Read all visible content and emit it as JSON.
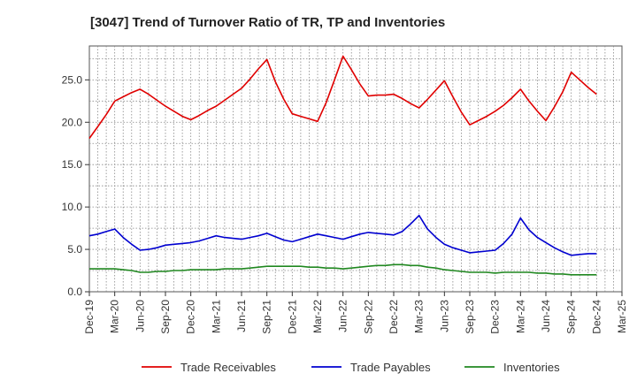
{
  "chart_data": {
    "type": "line",
    "title": "[3047]  Trend of Turnover Ratio of TR, TP and Inventories",
    "xlabel": "",
    "ylabel": "",
    "ylim": [
      0,
      29
    ],
    "yticks": [
      "0.0",
      "5.0",
      "10.0",
      "15.0",
      "20.0",
      "25.0"
    ],
    "ytick_values": [
      0,
      5,
      10,
      15,
      20,
      25
    ],
    "xticks": [
      "Dec-19",
      "Mar-20",
      "Jun-20",
      "Sep-20",
      "Dec-20",
      "Mar-21",
      "Jun-21",
      "Sep-21",
      "Dec-21",
      "Mar-22",
      "Jun-22",
      "Sep-22",
      "Dec-22",
      "Mar-23",
      "Jun-23",
      "Sep-23",
      "Dec-23",
      "Mar-24",
      "Jun-24",
      "Sep-24",
      "Dec-24",
      "Mar-25"
    ],
    "x": [
      "Dec-19",
      "Jan-20",
      "Feb-20",
      "Mar-20",
      "Apr-20",
      "May-20",
      "Jun-20",
      "Jul-20",
      "Aug-20",
      "Sep-20",
      "Oct-20",
      "Nov-20",
      "Dec-20",
      "Jan-21",
      "Feb-21",
      "Mar-21",
      "Apr-21",
      "May-21",
      "Jun-21",
      "Jul-21",
      "Aug-21",
      "Sep-21",
      "Oct-21",
      "Nov-21",
      "Dec-21",
      "Jan-22",
      "Feb-22",
      "Mar-22",
      "Apr-22",
      "May-22",
      "Jun-22",
      "Jul-22",
      "Aug-22",
      "Sep-22",
      "Oct-22",
      "Nov-22",
      "Dec-22",
      "Jan-23",
      "Feb-23",
      "Mar-23",
      "Apr-23",
      "May-23",
      "Jun-23",
      "Jul-23",
      "Aug-23",
      "Sep-23",
      "Oct-23",
      "Nov-23",
      "Dec-23",
      "Jan-24",
      "Feb-24",
      "Mar-24",
      "Apr-24",
      "May-24",
      "Jun-24",
      "Jul-24",
      "Aug-24",
      "Sep-24",
      "Oct-24",
      "Nov-24",
      "Dec-24"
    ],
    "grid": true,
    "legend_position": "bottom",
    "series": [
      {
        "name": "Trade Receivables",
        "color": "#e00000",
        "values": [
          18.1,
          19.5,
          20.9,
          22.5,
          23.0,
          23.5,
          23.9,
          23.3,
          22.6,
          21.9,
          21.3,
          20.7,
          20.3,
          20.8,
          21.4,
          21.9,
          22.6,
          23.3,
          24.0,
          25.1,
          26.3,
          27.4,
          24.8,
          22.7,
          21.0,
          20.7,
          20.4,
          20.1,
          22.3,
          25.0,
          27.8,
          26.2,
          24.5,
          23.1,
          23.2,
          23.2,
          23.3,
          22.8,
          22.2,
          21.7,
          22.7,
          23.8,
          24.9,
          23.0,
          21.2,
          19.7,
          20.2,
          20.7,
          21.3,
          22.0,
          22.9,
          23.9,
          22.5,
          21.3,
          20.2,
          21.8,
          23.6,
          25.9,
          25.0,
          24.1,
          23.3
        ]
      },
      {
        "name": "Trade Payables",
        "color": "#0000d0",
        "values": [
          6.6,
          6.8,
          7.1,
          7.4,
          6.4,
          5.6,
          4.9,
          5.0,
          5.2,
          5.5,
          5.6,
          5.7,
          5.8,
          6.0,
          6.3,
          6.6,
          6.4,
          6.3,
          6.2,
          6.4,
          6.6,
          6.9,
          6.5,
          6.1,
          5.9,
          6.2,
          6.5,
          6.8,
          6.6,
          6.4,
          6.2,
          6.5,
          6.8,
          7.0,
          6.9,
          6.8,
          6.7,
          7.1,
          8.0,
          9.0,
          7.4,
          6.4,
          5.6,
          5.2,
          4.9,
          4.6,
          4.7,
          4.8,
          4.9,
          5.7,
          6.8,
          8.7,
          7.3,
          6.4,
          5.8,
          5.2,
          4.7,
          4.3,
          4.4,
          4.5,
          4.5
        ]
      },
      {
        "name": "Inventories",
        "color": "#208820",
        "values": [
          2.7,
          2.7,
          2.7,
          2.7,
          2.6,
          2.5,
          2.3,
          2.3,
          2.4,
          2.4,
          2.5,
          2.5,
          2.6,
          2.6,
          2.6,
          2.6,
          2.7,
          2.7,
          2.7,
          2.8,
          2.9,
          3.0,
          3.0,
          3.0,
          3.0,
          3.0,
          2.9,
          2.9,
          2.8,
          2.8,
          2.7,
          2.8,
          2.9,
          3.0,
          3.1,
          3.1,
          3.2,
          3.2,
          3.1,
          3.1,
          2.9,
          2.8,
          2.6,
          2.5,
          2.4,
          2.3,
          2.3,
          2.3,
          2.2,
          2.3,
          2.3,
          2.3,
          2.3,
          2.2,
          2.2,
          2.1,
          2.1,
          2.0,
          2.0,
          2.0,
          2.0
        ]
      }
    ]
  }
}
